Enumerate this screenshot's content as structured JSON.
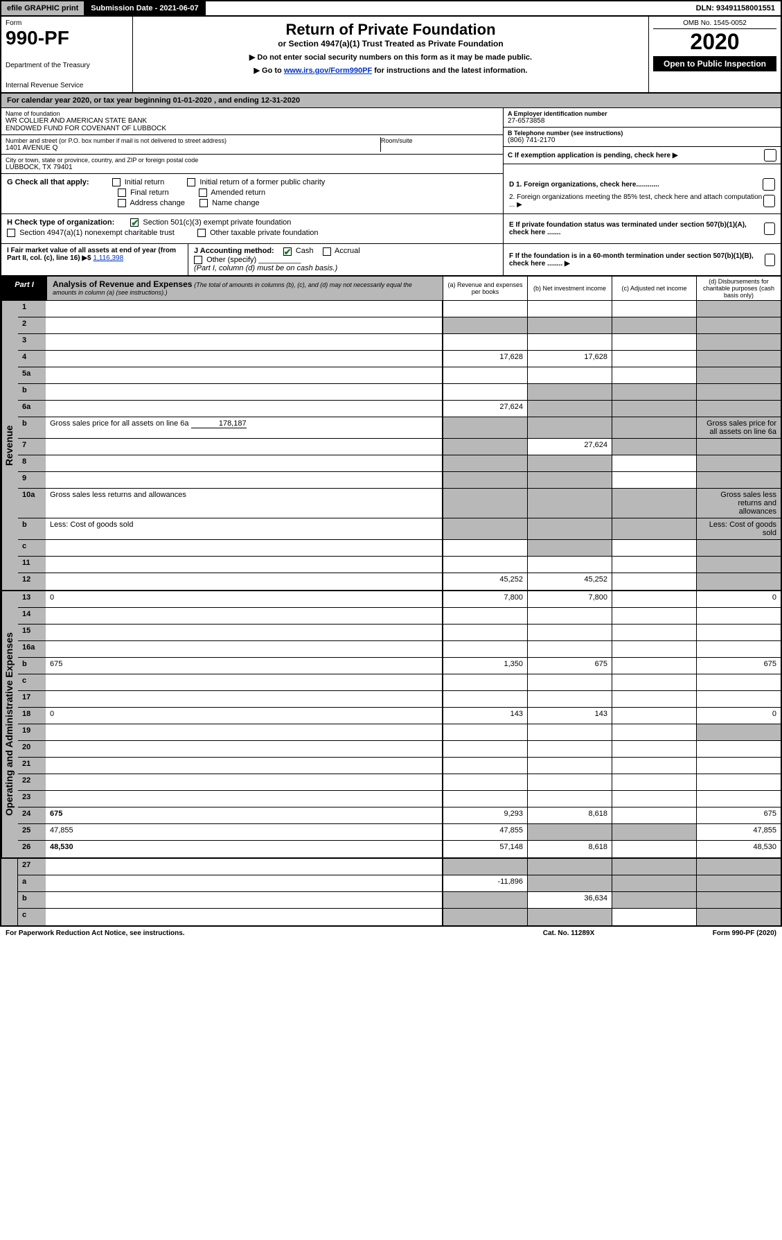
{
  "topbar": {
    "efile": "efile GRAPHIC print",
    "subdate": "Submission Date - 2021-06-07",
    "dln": "DLN: 93491158001551"
  },
  "header": {
    "form_label": "Form",
    "form_number": "990-PF",
    "dept1": "Department of the Treasury",
    "dept2": "Internal Revenue Service",
    "title": "Return of Private Foundation",
    "subtitle": "or Section 4947(a)(1) Trust Treated as Private Foundation",
    "instr1": "▶ Do not enter social security numbers on this form as it may be made public.",
    "instr2_pre": "▶ Go to ",
    "instr2_link": "www.irs.gov/Form990PF",
    "instr2_post": " for instructions and the latest information.",
    "omb": "OMB No. 1545-0052",
    "year": "2020",
    "inspect": "Open to Public Inspection"
  },
  "calyear": "For calendar year 2020, or tax year beginning 01-01-2020                                        , and ending 12-31-2020",
  "info": {
    "name_lbl": "Name of foundation",
    "name1": "WR COLLIER AND AMERICAN STATE BANK",
    "name2": "ENDOWED FUND FOR COVENANT OF LUBBOCK",
    "addr_lbl": "Number and street (or P.O. box number if mail is not delivered to street address)",
    "addr": "1401 AVENUE Q",
    "room_lbl": "Room/suite",
    "city_lbl": "City or town, state or province, country, and ZIP or foreign postal code",
    "city": "LUBBOCK, TX  79401",
    "ein_lbl": "A Employer identification number",
    "ein": "27-6573858",
    "phone_lbl": "B Telephone number (see instructions)",
    "phone": "(806) 741-2170",
    "c_lbl": "C If exemption application is pending, check here ▶"
  },
  "g": {
    "label": "G Check all that apply:",
    "opts": [
      "Initial return",
      "Initial return of a former public charity",
      "Final return",
      "Amended return",
      "Address change",
      "Name change"
    ]
  },
  "h": {
    "label": "H Check type of organization:",
    "opt1": "Section 501(c)(3) exempt private foundation",
    "opt2": "Section 4947(a)(1) nonexempt charitable trust",
    "opt3": "Other taxable private foundation"
  },
  "i": {
    "label": "I Fair market value of all assets at end of year (from Part II, col. (c), line 16) ▶$",
    "value": "1,116,398"
  },
  "j": {
    "label": "J Accounting method:",
    "cash": "Cash",
    "accrual": "Accrual",
    "other": "Other (specify)",
    "note": "(Part I, column (d) must be on cash basis.)"
  },
  "d": {
    "d1": "D 1. Foreign organizations, check here............",
    "d2": "2. Foreign organizations meeting the 85% test, check here and attach computation ... ▶"
  },
  "e": "E If private foundation status was terminated under section 507(b)(1)(A), check here .......",
  "f": "F If the foundation is in a 60-month termination under section 507(b)(1)(B), check here ........ ▶",
  "part1": {
    "label": "Part I",
    "title": "Analysis of Revenue and Expenses",
    "sub": "(The total of amounts in columns (b), (c), and (d) may not necessarily equal the amounts in column (a) (see instructions).)",
    "cols": {
      "a": "(a) Revenue and expenses per books",
      "b": "(b) Net investment income",
      "c": "(c) Adjusted net income",
      "d": "(d) Disbursements for charitable purposes (cash basis only)"
    }
  },
  "side_labels": {
    "revenue": "Revenue",
    "expenses": "Operating and Administrative Expenses"
  },
  "rows": {
    "r1": {
      "n": "1",
      "d": "",
      "a": "",
      "b": "",
      "c": "",
      "shade_d": true
    },
    "r2": {
      "n": "2",
      "d": "",
      "a": "",
      "b": "",
      "c": "",
      "shade_all": true,
      "bold_not": "not"
    },
    "r3": {
      "n": "3",
      "d": "",
      "a": "",
      "b": "",
      "c": "",
      "shade_d": true
    },
    "r4": {
      "n": "4",
      "d": "",
      "a": "17,628",
      "b": "17,628",
      "c": "",
      "shade_d": true
    },
    "r5a": {
      "n": "5a",
      "d": "",
      "a": "",
      "b": "",
      "c": "",
      "shade_d": true
    },
    "r5b": {
      "n": "b",
      "d": "",
      "a": "",
      "b": "",
      "c": "",
      "shade_a": false,
      "shade_bcd": true
    },
    "r6a": {
      "n": "6a",
      "d": "",
      "a": "27,624",
      "b": "",
      "c": "",
      "shade_bcd": true
    },
    "r6b": {
      "n": "b",
      "d": "Gross sales price for all assets on line 6a",
      "inline": "178,187",
      "shade_abcd": true
    },
    "r7": {
      "n": "7",
      "d": "",
      "a": "",
      "b": "27,624",
      "c": "",
      "shade_a": true,
      "shade_cd": true
    },
    "r8": {
      "n": "8",
      "d": "",
      "a": "",
      "b": "",
      "c": "",
      "shade_ab": true,
      "shade_d": true
    },
    "r9": {
      "n": "9",
      "d": "",
      "a": "",
      "b": "",
      "c": "",
      "shade_ab": true,
      "shade_d": true
    },
    "r10a": {
      "n": "10a",
      "d": "Gross sales less returns and allowances",
      "shade_abcd": true
    },
    "r10b": {
      "n": "b",
      "d": "Less: Cost of goods sold",
      "shade_abcd": true
    },
    "r10c": {
      "n": "c",
      "d": "",
      "a": "",
      "b": "",
      "c": "",
      "shade_b": true,
      "shade_d": true
    },
    "r11": {
      "n": "11",
      "d": "",
      "a": "",
      "b": "",
      "c": "",
      "shade_d": true
    },
    "r12": {
      "n": "12",
      "d": "",
      "bold": true,
      "a": "45,252",
      "b": "45,252",
      "c": "",
      "shade_d": true
    },
    "r13": {
      "n": "13",
      "d": "0",
      "a": "7,800",
      "b": "7,800",
      "c": ""
    },
    "r14": {
      "n": "14",
      "d": "",
      "a": "",
      "b": "",
      "c": ""
    },
    "r15": {
      "n": "15",
      "d": "",
      "a": "",
      "b": "",
      "c": ""
    },
    "r16a": {
      "n": "16a",
      "d": "",
      "a": "",
      "b": "",
      "c": ""
    },
    "r16b": {
      "n": "b",
      "d": "675",
      "a": "1,350",
      "b": "675",
      "c": ""
    },
    "r16c": {
      "n": "c",
      "d": "",
      "a": "",
      "b": "",
      "c": ""
    },
    "r17": {
      "n": "17",
      "d": "",
      "a": "",
      "b": "",
      "c": ""
    },
    "r18": {
      "n": "18",
      "d": "0",
      "a": "143",
      "b": "143",
      "c": ""
    },
    "r19": {
      "n": "19",
      "d": "",
      "a": "",
      "b": "",
      "c": "",
      "shade_d": true
    },
    "r20": {
      "n": "20",
      "d": "",
      "a": "",
      "b": "",
      "c": ""
    },
    "r21": {
      "n": "21",
      "d": "",
      "a": "",
      "b": "",
      "c": ""
    },
    "r22": {
      "n": "22",
      "d": "",
      "a": "",
      "b": "",
      "c": ""
    },
    "r23": {
      "n": "23",
      "d": "",
      "a": "",
      "b": "",
      "c": ""
    },
    "r24": {
      "n": "24",
      "d": "675",
      "bold": true,
      "a": "9,293",
      "b": "8,618",
      "c": ""
    },
    "r25": {
      "n": "25",
      "d": "47,855",
      "a": "47,855",
      "b": "",
      "c": "",
      "shade_bc": true
    },
    "r26": {
      "n": "26",
      "d": "48,530",
      "bold": true,
      "a": "57,148",
      "b": "8,618",
      "c": ""
    },
    "r27": {
      "n": "27",
      "d": "",
      "a": "",
      "b": "",
      "c": "",
      "shade_abcd": true
    },
    "r27a": {
      "n": "a",
      "d": "",
      "bold": true,
      "a": "-11,896",
      "b": "",
      "c": "",
      "shade_bcd": true
    },
    "r27b": {
      "n": "b",
      "d": "",
      "bold": true,
      "a": "",
      "b": "36,634",
      "c": "",
      "shade_a": true,
      "shade_cd": true
    },
    "r27c": {
      "n": "c",
      "d": "",
      "bold": true,
      "a": "",
      "b": "",
      "c": "",
      "shade_ab": true,
      "shade_d": true
    }
  },
  "footer": {
    "left": "For Paperwork Reduction Act Notice, see instructions.",
    "center": "Cat. No. 11289X",
    "right": "Form 990-PF (2020)"
  },
  "colors": {
    "shade": "#b8b8b8",
    "black": "#000000",
    "link": "#0033cc",
    "check": "#0a7d2c"
  }
}
